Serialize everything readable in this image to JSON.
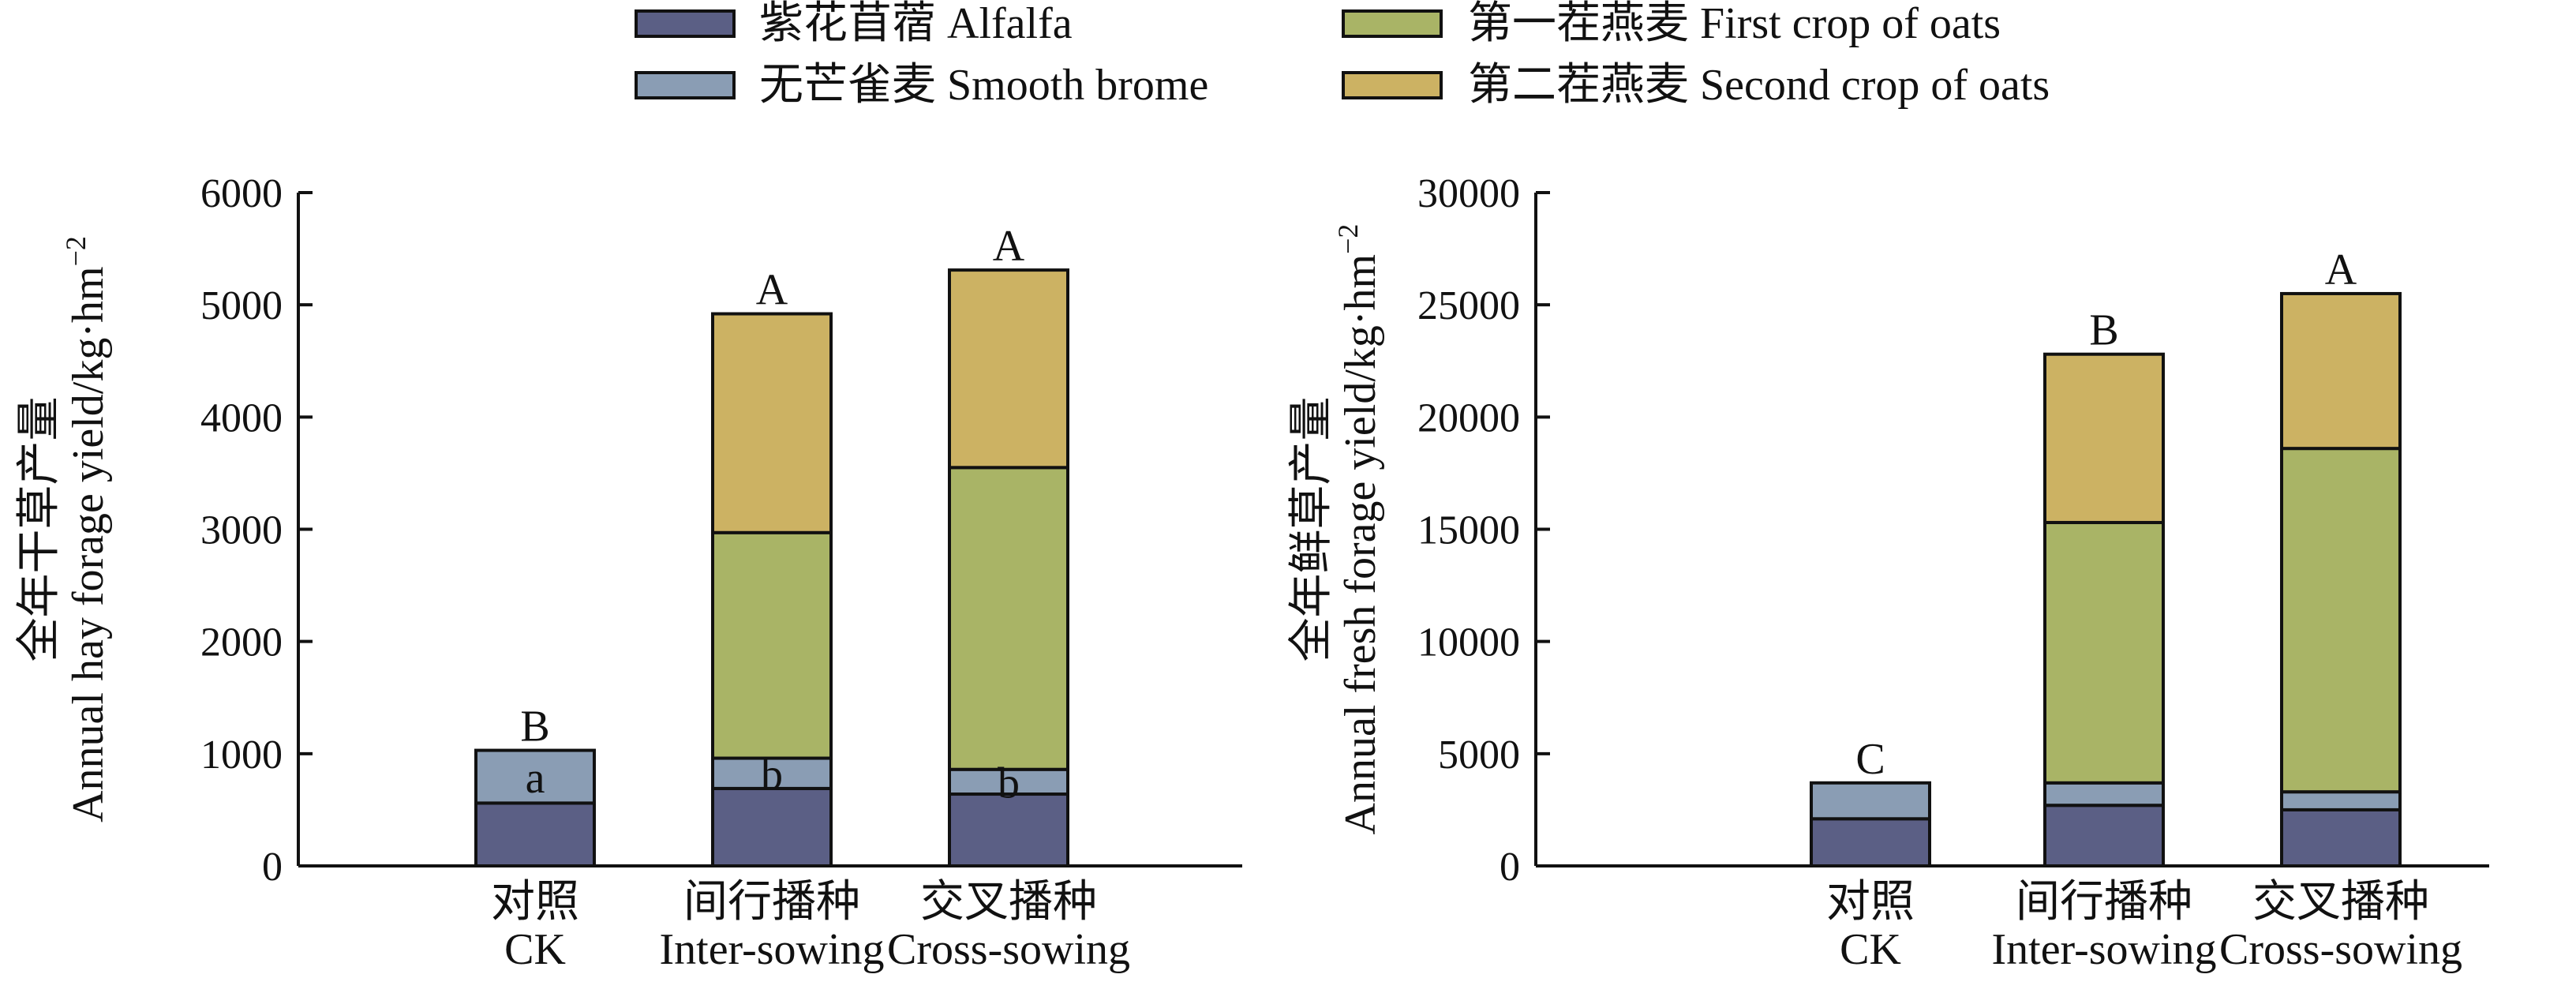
{
  "legend": {
    "entries": [
      {
        "label": "紫花苜蓿 Alfalfa",
        "color": "#5b5f85"
      },
      {
        "label": "无芒雀麦 Smooth brome",
        "color": "#8a9db4"
      },
      {
        "label": "第一茬燕麦 First crop of oats",
        "color": "#a9b466"
      },
      {
        "label": "第二茬燕麦 Second crop of oats",
        "color": "#ccb263"
      }
    ]
  },
  "chart_data": [
    {
      "type": "bar",
      "stacked": true,
      "ylabel_cn": "全年干草产量",
      "ylabel_en": "Annual hay forage yield/kg·hm",
      "ylabel_sup": "−2",
      "ylim": [
        0,
        6000
      ],
      "yticks": [
        "0",
        "1000",
        "2000",
        "3000",
        "4000",
        "5000",
        "6000"
      ],
      "categories": [
        {
          "cn": "对照",
          "en": "CK"
        },
        {
          "cn": "间行播种",
          "en": "Inter-sowing"
        },
        {
          "cn": "交叉播种",
          "en": "Cross-sowing"
        }
      ],
      "series": [
        {
          "name": "紫花苜蓿 Alfalfa",
          "values": [
            560,
            690,
            640
          ]
        },
        {
          "name": "无芒雀麦 Smooth brome",
          "values": [
            470,
            270,
            220
          ]
        },
        {
          "name": "第一茬燕麦 First crop of oats",
          "values": [
            0,
            2010,
            2690
          ]
        },
        {
          "name": "第二茬燕麦 Second crop of oats",
          "values": [
            0,
            1950,
            1760
          ]
        }
      ],
      "top_labels": [
        "B",
        "A",
        "A"
      ],
      "inner_labels": [
        "a",
        "b",
        "b"
      ]
    },
    {
      "type": "bar",
      "stacked": true,
      "ylabel_cn": "全年鲜草产量",
      "ylabel_en": "Annual fresh forage yield/kg·hm",
      "ylabel_sup": "−2",
      "ylim": [
        0,
        30000
      ],
      "yticks": [
        "0",
        "5000",
        "10000",
        "15000",
        "20000",
        "25000",
        "30000"
      ],
      "categories": [
        {
          "cn": "对照",
          "en": "CK"
        },
        {
          "cn": "间行播种",
          "en": "Inter-sowing"
        },
        {
          "cn": "交叉播种",
          "en": "Cross-sowing"
        }
      ],
      "series": [
        {
          "name": "紫花苜蓿 Alfalfa",
          "values": [
            2100,
            2700,
            2500
          ]
        },
        {
          "name": "无芒雀麦 Smooth brome",
          "values": [
            1600,
            1000,
            800
          ]
        },
        {
          "name": "第一茬燕麦 First crop of oats",
          "values": [
            0,
            11600,
            15300
          ]
        },
        {
          "name": "第二茬燕麦 Second crop of oats",
          "values": [
            0,
            7500,
            6900
          ]
        }
      ],
      "top_labels": [
        "C",
        "B",
        "A"
      ],
      "inner_labels": [
        "",
        "",
        ""
      ]
    }
  ]
}
